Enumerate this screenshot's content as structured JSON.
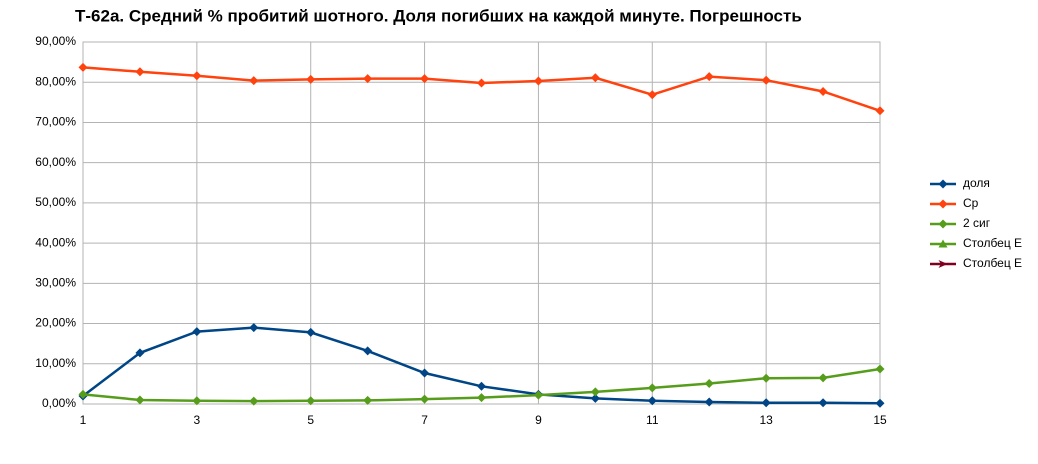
{
  "chart_data": {
    "type": "line",
    "title": "Т-62а. Средний % пробитий шотного. Доля погибших на каждой минуте. Погрешность",
    "x": [
      1,
      2,
      3,
      4,
      5,
      6,
      7,
      8,
      9,
      10,
      11,
      12,
      13,
      14,
      15
    ],
    "series": [
      {
        "name": "доля",
        "color": "#004586",
        "marker": "diamond",
        "values": [
          2,
          12.7,
          18,
          19,
          17.8,
          13.2,
          7.7,
          4.4,
          2.4,
          1.4,
          0.8,
          0.5,
          0.3,
          0.3,
          0.2
        ]
      },
      {
        "name": "Ср",
        "color": "#ff420e",
        "marker": "diamond",
        "values": [
          83.7,
          82.6,
          81.6,
          80.4,
          80.7,
          80.9,
          80.9,
          79.8,
          80.3,
          81.1,
          76.9,
          81.4,
          80.5,
          77.7,
          72.9
        ]
      },
      {
        "name": "2 сиг",
        "color": "#579d1c",
        "marker": "diamond",
        "values": [
          2.4,
          1,
          0.8,
          0.7,
          0.8,
          0.9,
          1.2,
          1.6,
          2.2,
          3,
          4,
          5.1,
          6.4,
          6.5,
          8.7
        ]
      },
      {
        "name": "Столбец E",
        "color": "#579d1c",
        "marker": "triangle"
      },
      {
        "name": "Столбец E",
        "color": "#7e0021",
        "marker": "arrow"
      }
    ],
    "xlim": [
      1,
      15
    ],
    "xticks": [
      1,
      3,
      5,
      7,
      9,
      11,
      13,
      15
    ],
    "ylim": [
      0,
      90
    ],
    "yticks": [
      {
        "value": 0,
        "label": "0,00%"
      },
      {
        "value": 10,
        "label": "10,00%"
      },
      {
        "value": 20,
        "label": "20,00%"
      },
      {
        "value": 30,
        "label": "30,00%"
      },
      {
        "value": 40,
        "label": "40,00%"
      },
      {
        "value": 50,
        "label": "50,00%"
      },
      {
        "value": 60,
        "label": "60,00%"
      },
      {
        "value": 70,
        "label": "70,00%"
      },
      {
        "value": 80,
        "label": "80,00%"
      },
      {
        "value": 90,
        "label": "90,00%"
      }
    ],
    "grid": true,
    "legend": "right"
  }
}
